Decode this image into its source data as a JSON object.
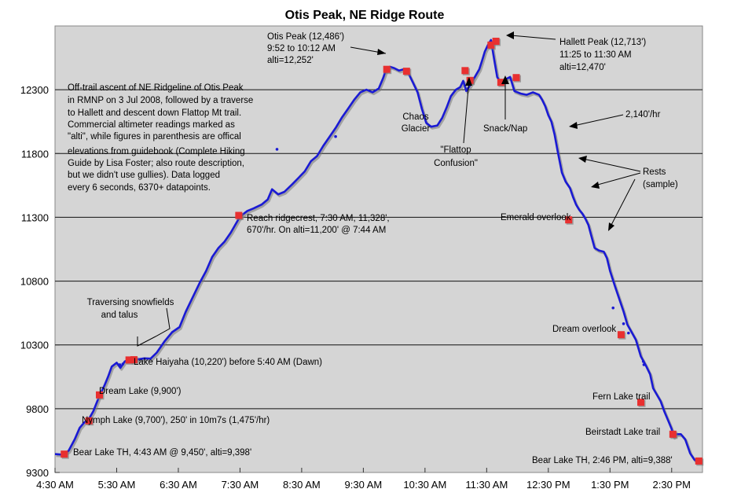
{
  "chart_data": {
    "type": "line",
    "title": "Otis Peak, NE Ridge Route",
    "xlabel": "",
    "ylabel": "",
    "x_unit": "hours since midnight",
    "xlim": [
      4.5,
      15.0
    ],
    "ylim": [
      9300,
      12800
    ],
    "grid": true,
    "x_ticks": [
      {
        "x": 4.5,
        "label": "4:30 AM"
      },
      {
        "x": 5.5,
        "label": "5:30 AM"
      },
      {
        "x": 6.5,
        "label": "6:30 AM"
      },
      {
        "x": 7.5,
        "label": "7:30 AM"
      },
      {
        "x": 8.5,
        "label": "8:30 AM"
      },
      {
        "x": 9.5,
        "label": "9:30 AM"
      },
      {
        "x": 10.5,
        "label": "10:30 AM"
      },
      {
        "x": 11.5,
        "label": "11:30 AM"
      },
      {
        "x": 12.5,
        "label": "12:30 PM"
      },
      {
        "x": 13.5,
        "label": "1:30 PM"
      },
      {
        "x": 14.5,
        "label": "2:30 PM"
      }
    ],
    "y_ticks": [
      9300,
      9800,
      10300,
      10800,
      11300,
      11800,
      12300
    ],
    "series": [
      {
        "color": "#1a1ad4",
        "points": [
          [
            4.5,
            9444
          ],
          [
            4.62,
            9440
          ],
          [
            4.72,
            9470
          ],
          [
            4.82,
            9560
          ],
          [
            4.9,
            9650
          ],
          [
            4.97,
            9690
          ],
          [
            5.05,
            9720
          ],
          [
            5.12,
            9780
          ],
          [
            5.22,
            9900
          ],
          [
            5.3,
            9980
          ],
          [
            5.36,
            10050
          ],
          [
            5.42,
            10130
          ],
          [
            5.5,
            10160
          ],
          [
            5.56,
            10120
          ],
          [
            5.63,
            10170
          ],
          [
            5.72,
            10190
          ],
          [
            5.82,
            10185
          ],
          [
            5.95,
            10195
          ],
          [
            6.05,
            10192
          ],
          [
            6.15,
            10240
          ],
          [
            6.28,
            10330
          ],
          [
            6.4,
            10400
          ],
          [
            6.52,
            10440
          ],
          [
            6.62,
            10560
          ],
          [
            6.72,
            10660
          ],
          [
            6.85,
            10790
          ],
          [
            6.95,
            10880
          ],
          [
            7.05,
            10990
          ],
          [
            7.15,
            11060
          ],
          [
            7.25,
            11110
          ],
          [
            7.35,
            11180
          ],
          [
            7.48,
            11290
          ],
          [
            7.55,
            11325
          ],
          [
            7.62,
            11350
          ],
          [
            7.72,
            11370
          ],
          [
            7.85,
            11400
          ],
          [
            7.95,
            11440
          ],
          [
            8.02,
            11520
          ],
          [
            8.12,
            11480
          ],
          [
            8.22,
            11500
          ],
          [
            8.35,
            11560
          ],
          [
            8.45,
            11610
          ],
          [
            8.55,
            11660
          ],
          [
            8.65,
            11740
          ],
          [
            8.75,
            11780
          ],
          [
            8.85,
            11860
          ],
          [
            8.95,
            11930
          ],
          [
            9.05,
            12000
          ],
          [
            9.15,
            12080
          ],
          [
            9.25,
            12150
          ],
          [
            9.35,
            12220
          ],
          [
            9.45,
            12280
          ],
          [
            9.55,
            12300
          ],
          [
            9.65,
            12280
          ],
          [
            9.75,
            12310
          ],
          [
            9.82,
            12390
          ],
          [
            9.87,
            12460
          ],
          [
            9.93,
            12480
          ],
          [
            10.0,
            12470
          ],
          [
            10.08,
            12450
          ],
          [
            10.15,
            12460
          ],
          [
            10.22,
            12440
          ],
          [
            10.3,
            12360
          ],
          [
            10.38,
            12280
          ],
          [
            10.45,
            12150
          ],
          [
            10.52,
            12040
          ],
          [
            10.6,
            12010
          ],
          [
            10.7,
            12020
          ],
          [
            10.78,
            12080
          ],
          [
            10.85,
            12160
          ],
          [
            10.92,
            12250
          ],
          [
            11.0,
            12300
          ],
          [
            11.07,
            12320
          ],
          [
            11.12,
            12370
          ],
          [
            11.17,
            12290
          ],
          [
            11.25,
            12350
          ],
          [
            11.32,
            12410
          ],
          [
            11.38,
            12460
          ],
          [
            11.42,
            12520
          ],
          [
            11.47,
            12600
          ],
          [
            11.52,
            12650
          ],
          [
            11.57,
            12690
          ],
          [
            11.62,
            12540
          ],
          [
            11.67,
            12400
          ],
          [
            11.72,
            12360
          ],
          [
            11.8,
            12380
          ],
          [
            11.88,
            12400
          ],
          [
            11.95,
            12290
          ],
          [
            12.05,
            12270
          ],
          [
            12.15,
            12260
          ],
          [
            12.25,
            12280
          ],
          [
            12.35,
            12260
          ],
          [
            12.4,
            12220
          ],
          [
            12.45,
            12170
          ],
          [
            12.5,
            12100
          ],
          [
            12.55,
            12050
          ],
          [
            12.6,
            11950
          ],
          [
            12.65,
            11820
          ],
          [
            12.72,
            11650
          ],
          [
            12.78,
            11580
          ],
          [
            12.85,
            11530
          ],
          [
            12.9,
            11460
          ],
          [
            12.95,
            11400
          ],
          [
            13.0,
            11360
          ],
          [
            13.05,
            11330
          ],
          [
            13.1,
            11290
          ],
          [
            13.15,
            11240
          ],
          [
            13.2,
            11150
          ],
          [
            13.25,
            11060
          ],
          [
            13.32,
            11040
          ],
          [
            13.4,
            11030
          ],
          [
            13.45,
            10980
          ],
          [
            13.5,
            10880
          ],
          [
            13.58,
            10760
          ],
          [
            13.65,
            10660
          ],
          [
            13.72,
            10560
          ],
          [
            13.78,
            10460
          ],
          [
            13.85,
            10400
          ],
          [
            13.92,
            10340
          ],
          [
            14.0,
            10210
          ],
          [
            14.08,
            10140
          ],
          [
            14.15,
            10070
          ],
          [
            14.2,
            9960
          ],
          [
            14.26,
            9910
          ],
          [
            14.32,
            9860
          ],
          [
            14.38,
            9780
          ],
          [
            14.45,
            9700
          ],
          [
            14.5,
            9640
          ],
          [
            14.53,
            9580
          ],
          [
            14.58,
            9600
          ],
          [
            14.65,
            9600
          ],
          [
            14.72,
            9560
          ],
          [
            14.8,
            9450
          ],
          [
            14.87,
            9400
          ],
          [
            14.92,
            9386
          ]
        ]
      }
    ],
    "stray_points": [
      [
        8.1,
        11833
      ],
      [
        9.05,
        11933
      ],
      [
        13.55,
        10590
      ],
      [
        13.72,
        10466
      ],
      [
        13.8,
        10393
      ],
      [
        14.04,
        10170
      ],
      [
        14.05,
        10145
      ],
      [
        5.55,
        10145
      ],
      [
        5.6,
        10150
      ]
    ],
    "markers": [
      [
        4.65,
        9444
      ],
      [
        5.05,
        9705
      ],
      [
        5.22,
        9908
      ],
      [
        5.7,
        10182
      ],
      [
        5.78,
        10184
      ],
      [
        7.48,
        11315
      ],
      [
        9.88,
        12460
      ],
      [
        10.2,
        12445
      ],
      [
        11.15,
        12450
      ],
      [
        11.23,
        12373
      ],
      [
        11.57,
        12650
      ],
      [
        11.65,
        12680
      ],
      [
        11.73,
        12358
      ],
      [
        11.98,
        12395
      ],
      [
        12.83,
        11280
      ],
      [
        13.68,
        10380
      ],
      [
        14.0,
        9850
      ],
      [
        14.52,
        9600
      ],
      [
        14.94,
        9390
      ]
    ],
    "marker_color": "#e83030",
    "annotations": {
      "otis_peak": [
        "Otis Peak (12,486')",
        "9:52 to 10:12 AM",
        "alti=12,252'"
      ],
      "hallett_peak": [
        "Hallett Peak (12,713')",
        "11:25 to 11:30 AM",
        "alti=12,470'"
      ],
      "description": [
        "Off-trail ascent of NE Ridgeline of Otis Peak",
        "in RMNP on 3 Jul 2008, followed by a traverse",
        "to Hallett and descent down Flattop Mt trail.",
        "Commercial altimeter readings marked as",
        "\"alti\", while figures in parenthesis are offical",
        "elevations from guidebook (Complete Hiking",
        "Guide by Lisa Foster; also route description,",
        "but we didn't use gullies). Data logged",
        "every 6 seconds, 6370+ datapoints."
      ],
      "chaos_glacier": [
        "Chaos",
        "Glacier"
      ],
      "snack_nap": "Snack/Nap",
      "flattop_confusion": [
        "\"Flattop",
        "Confusion\""
      ],
      "rate_down": "2,140'/hr",
      "rests": [
        "Rests",
        "(sample)"
      ],
      "emerald_overlook": "Emerald overlook",
      "reach_ridgecrest": [
        "Reach ridgecrest, 7:30 AM, 11,328',",
        "670'/hr. On alti=11,200' @ 7:44 AM"
      ],
      "traversing_snowfields": [
        "Traversing snowfields",
        "and talus"
      ],
      "lake_haiyaha": "Lake Haiyaha (10,220') before 5:40 AM (Dawn)",
      "dream_lake": "Dream Lake (9,900')",
      "nymph_lake": "Nymph Lake (9,700'), 250' in 10m7s (1,475'/hr)",
      "bear_lake_start": "Bear Lake TH, 4:43 AM @ 9,450', alti=9,398'",
      "dream_overlook": "Dream overlook",
      "fern_lake_trail": "Fern Lake trail",
      "beirstadt_lake_trail": "Beirstadt Lake trail",
      "bear_lake_end": "Bear Lake TH, 2:46 PM, alti=9,388'"
    }
  }
}
